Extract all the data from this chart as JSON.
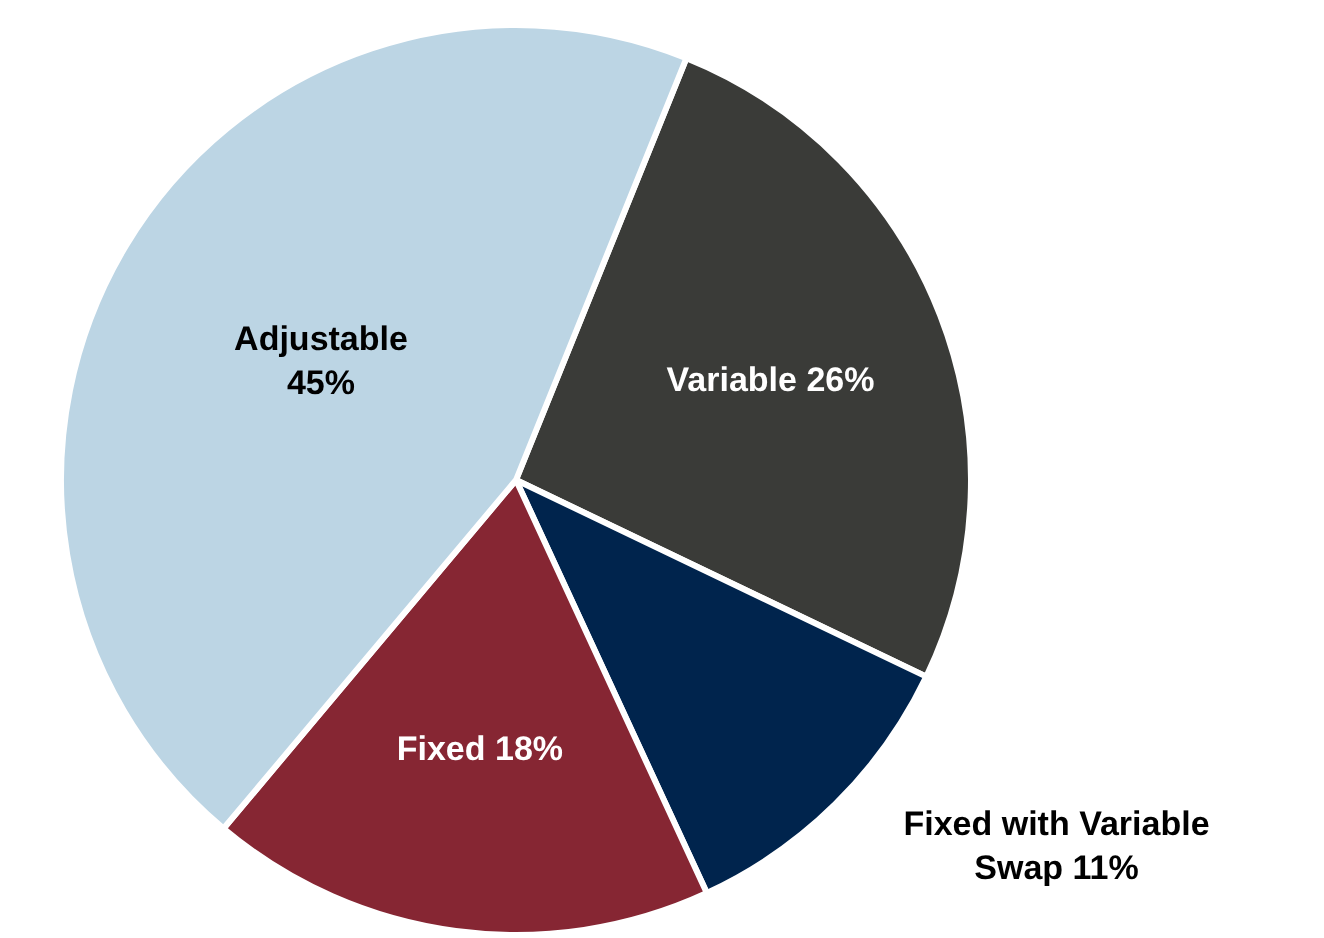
{
  "chart_data": {
    "type": "pie",
    "categories": [
      "Variable",
      "Fixed with Variable Swap",
      "Fixed",
      "Adjustable"
    ],
    "values": [
      26,
      11,
      18,
      45
    ],
    "colors": [
      "#3a3b38",
      "#00244d",
      "#862633",
      "#bcd5e4"
    ],
    "value_labels": [
      "26%",
      "11%",
      "18%",
      "45%"
    ]
  }
}
